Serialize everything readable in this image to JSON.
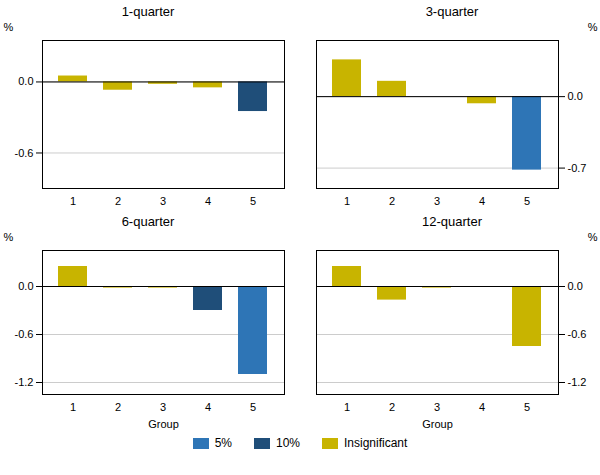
{
  "chart_data": [
    {
      "type": "bar",
      "title": "1-quarter",
      "categories": [
        "1",
        "2",
        "3",
        "4",
        "5"
      ],
      "values": [
        0.05,
        -0.07,
        -0.02,
        -0.05,
        -0.25
      ],
      "colors": [
        "#c8b400",
        "#c8b400",
        "#c8b400",
        "#c8b400",
        "#1f4e79"
      ],
      "ylim": [
        -0.9,
        0.35
      ],
      "yticks": [
        {
          "value": 0.0,
          "label": "0.0"
        },
        -0.6
      ],
      "ylabel": "%",
      "grid": true
    },
    {
      "type": "bar",
      "title": "3-quarter",
      "categories": [
        "1",
        "2",
        "3",
        "4",
        "5"
      ],
      "values": [
        0.36,
        0.15,
        0.0,
        -0.07,
        -0.72
      ],
      "colors": [
        "#c8b400",
        "#c8b400",
        "#c8b400",
        "#c8b400",
        "#2e75b6"
      ],
      "ylim": [
        -0.9,
        0.55
      ],
      "yticks": [
        {
          "value": 0.0,
          "label": "0.0"
        },
        -0.7
      ],
      "ylabel": "%",
      "grid": true
    },
    {
      "type": "bar",
      "title": "6-quarter",
      "categories": [
        "1",
        "2",
        "3",
        "4",
        "5"
      ],
      "values": [
        0.25,
        -0.02,
        -0.02,
        -0.3,
        -1.1
      ],
      "colors": [
        "#c8b400",
        "#c8b400",
        "#c8b400",
        "#1f4e79",
        "#2e75b6"
      ],
      "ylim": [
        -1.35,
        0.45
      ],
      "yticks": [
        {
          "value": 0.0,
          "label": "0.0"
        },
        -0.6,
        -1.2
      ],
      "ylabel": "%",
      "xlabel": "Group",
      "grid": true
    },
    {
      "type": "bar",
      "title": "12-quarter",
      "categories": [
        "1",
        "2",
        "3",
        "4",
        "5"
      ],
      "values": [
        0.25,
        -0.17,
        -0.02,
        0.0,
        -0.75
      ],
      "colors": [
        "#c8b400",
        "#c8b400",
        "#c8b400",
        "#c8b400",
        "#c8b400"
      ],
      "ylim": [
        -1.35,
        0.45
      ],
      "yticks": [
        {
          "value": 0.0,
          "label": "0.0"
        },
        -0.6,
        -1.2
      ],
      "ylabel": "%",
      "xlabel": "Group",
      "grid": true
    }
  ],
  "legend": "bottom",
  "legend_items": [
    {
      "name": "5%",
      "color": "#2e75b6"
    },
    {
      "name": "10%",
      "color": "#1f4e79"
    },
    {
      "name": "Insignificant",
      "color": "#c8b400"
    }
  ]
}
